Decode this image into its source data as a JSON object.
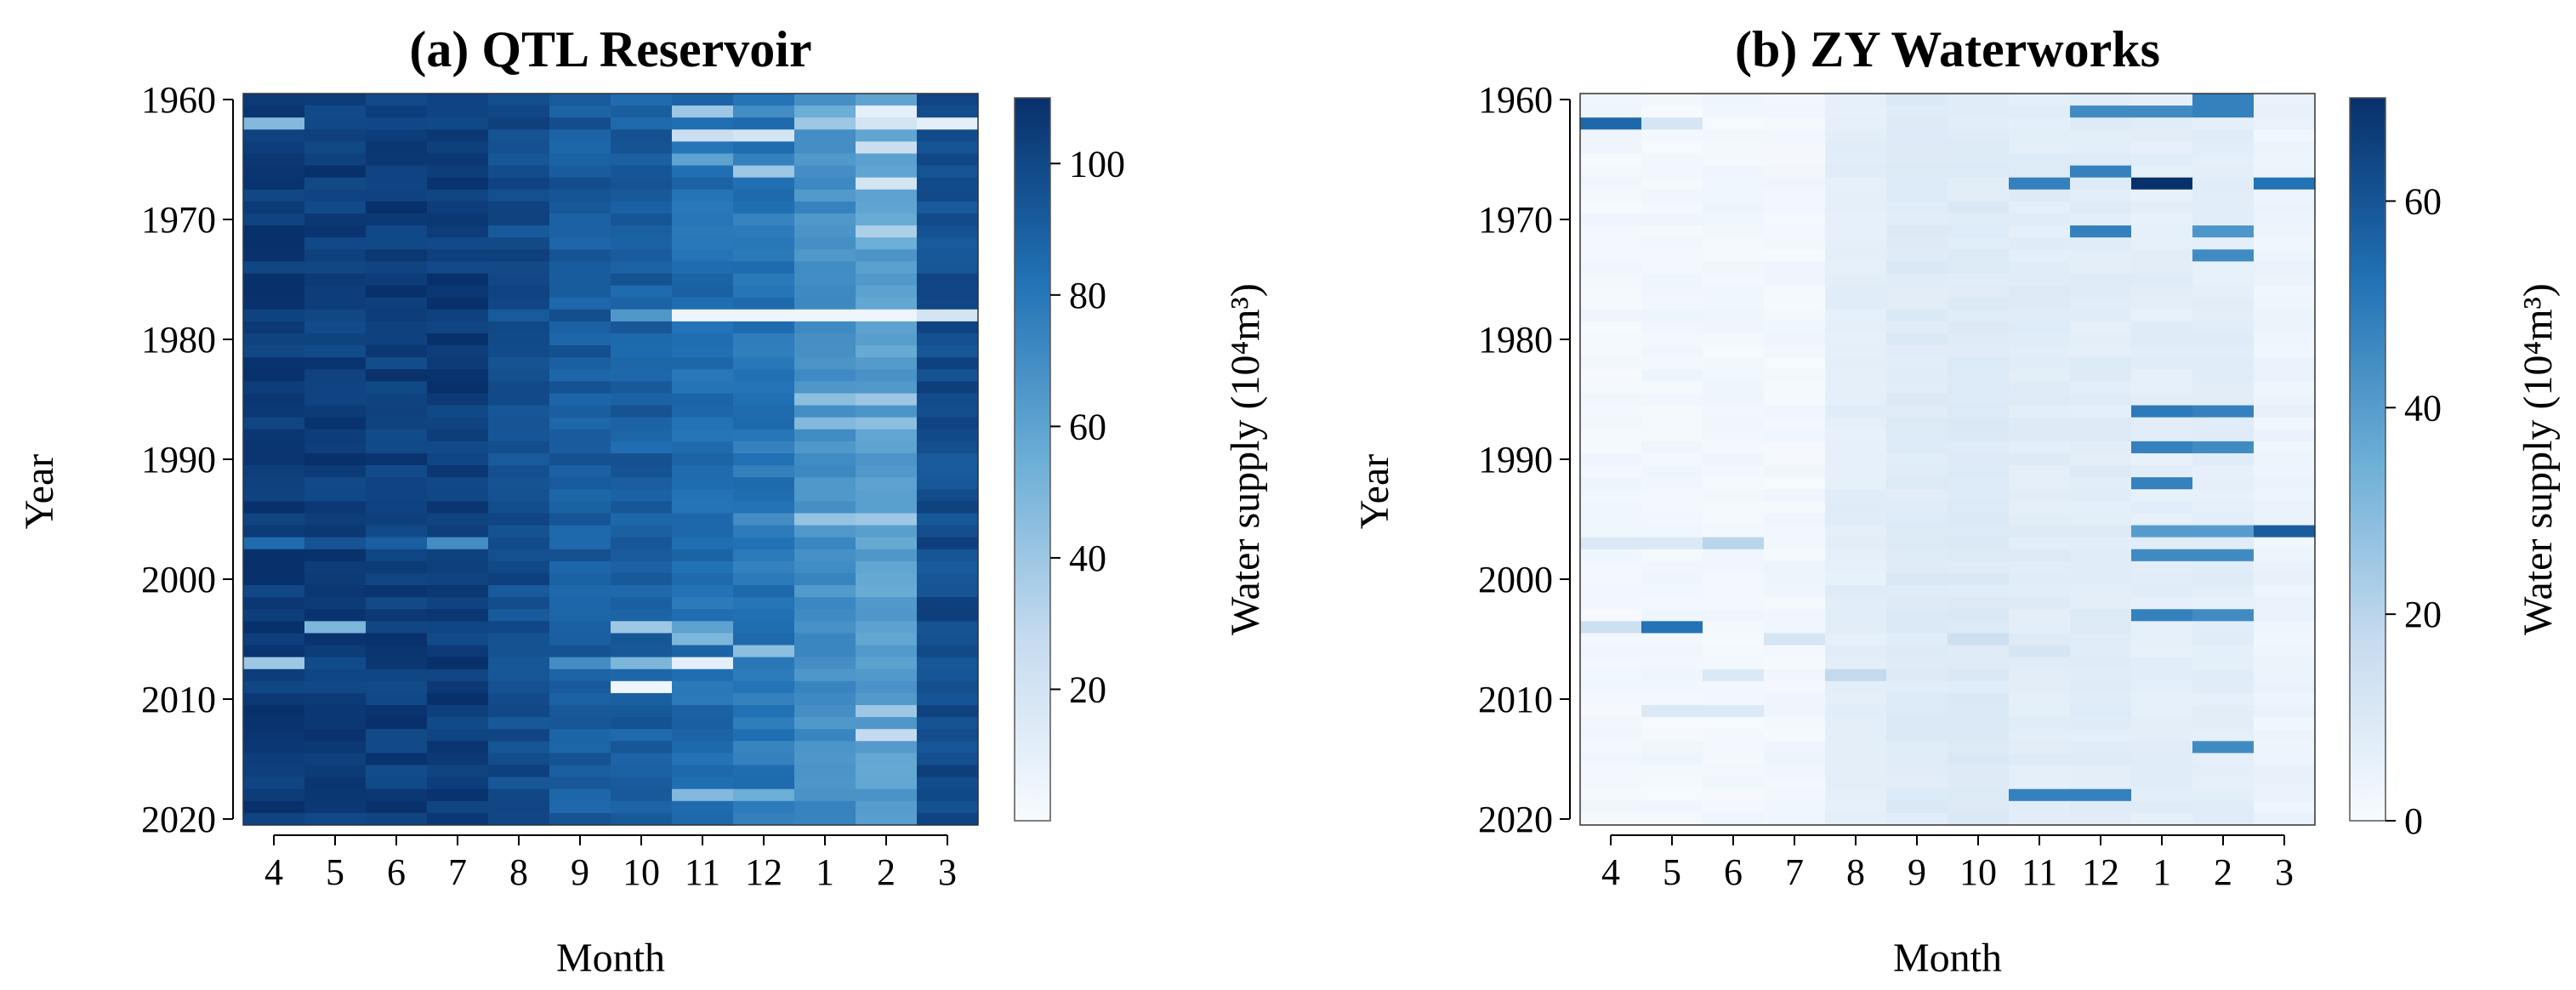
{
  "chart_data": [
    {
      "type": "heatmap",
      "title": "(a) QTL Reservoir",
      "xlabel": "Month",
      "ylabel": "Year",
      "x": [
        "4",
        "5",
        "6",
        "7",
        "8",
        "9",
        "10",
        "11",
        "12",
        "1",
        "2",
        "3"
      ],
      "y_ticks": [
        "1960",
        "1970",
        "1980",
        "1990",
        "2000",
        "2010",
        "2020"
      ],
      "ylim": [
        1960,
        2020
      ],
      "colorbar": {
        "label": "Water supply (10⁴m³)",
        "ticks": [
          "20",
          "40",
          "60",
          "80",
          "100"
        ],
        "range": [
          0,
          110
        ]
      },
      "col_base": [
        106,
        104,
        104,
        105,
        98,
        92,
        90,
        84,
        80,
        70,
        62,
        98
      ],
      "anomalies": [
        [
          1962,
          0,
          48
        ],
        [
          1962,
          1,
          100
        ],
        [
          1961,
          7,
          40
        ],
        [
          1963,
          7,
          25
        ],
        [
          1961,
          8,
          70
        ],
        [
          1963,
          8,
          20
        ],
        [
          1961,
          9,
          55
        ],
        [
          1962,
          9,
          40
        ],
        [
          1961,
          10,
          10
        ],
        [
          1962,
          10,
          20
        ],
        [
          1964,
          10,
          25
        ],
        [
          1962,
          11,
          10
        ],
        [
          1965,
          7,
          60
        ],
        [
          1966,
          8,
          40
        ],
        [
          1967,
          10,
          20
        ],
        [
          1971,
          10,
          35
        ],
        [
          1972,
          10,
          55
        ],
        [
          1978,
          6,
          65
        ],
        [
          1978,
          7,
          5
        ],
        [
          1978,
          8,
          5
        ],
        [
          1978,
          9,
          5
        ],
        [
          1978,
          10,
          5
        ],
        [
          1978,
          11,
          20
        ],
        [
          1985,
          9,
          45
        ],
        [
          1985,
          10,
          40
        ],
        [
          1987,
          9,
          48
        ],
        [
          1987,
          10,
          45
        ],
        [
          1993,
          9,
          65
        ],
        [
          1995,
          8,
          70
        ],
        [
          1995,
          9,
          42
        ],
        [
          1995,
          10,
          40
        ],
        [
          1997,
          0,
          85
        ],
        [
          1997,
          1,
          95
        ],
        [
          1997,
          2,
          90
        ],
        [
          1997,
          3,
          70
        ],
        [
          2004,
          1,
          50
        ],
        [
          2004,
          6,
          40
        ],
        [
          2004,
          7,
          60
        ],
        [
          2005,
          7,
          50
        ],
        [
          2006,
          8,
          45
        ],
        [
          2007,
          0,
          40
        ],
        [
          2007,
          5,
          70
        ],
        [
          2007,
          6,
          50
        ],
        [
          2007,
          7,
          10
        ],
        [
          2009,
          6,
          5
        ],
        [
          2011,
          10,
          40
        ],
        [
          2013,
          10,
          28
        ],
        [
          2018,
          7,
          48
        ],
        [
          2018,
          8,
          55
        ]
      ]
    },
    {
      "type": "heatmap",
      "title": "(b) ZY Waterworks",
      "xlabel": "Month",
      "ylabel": "Year",
      "x": [
        "4",
        "5",
        "6",
        "7",
        "8",
        "9",
        "10",
        "11",
        "12",
        "1",
        "2",
        "3"
      ],
      "y_ticks": [
        "1960",
        "1970",
        "1980",
        "1990",
        "2000",
        "2010",
        "2020"
      ],
      "ylim": [
        1960,
        2020
      ],
      "colorbar": {
        "label": "Water supply (10⁴m³)",
        "ticks": [
          "0",
          "20",
          "40",
          "60"
        ],
        "range": [
          0,
          70
        ]
      },
      "col_base": [
        2,
        2,
        2,
        2,
        7,
        9,
        9,
        8,
        8,
        7,
        7,
        4
      ],
      "anomalies": [
        [
          1962,
          0,
          55
        ],
        [
          1962,
          1,
          12
        ],
        [
          1961,
          8,
          45
        ],
        [
          1961,
          9,
          45
        ],
        [
          1960,
          10,
          48
        ],
        [
          1961,
          10,
          48
        ],
        [
          1966,
          8,
          48
        ],
        [
          1967,
          7,
          48
        ],
        [
          1967,
          9,
          70
        ],
        [
          1967,
          11,
          52
        ],
        [
          1971,
          8,
          48
        ],
        [
          1971,
          10,
          42
        ],
        [
          1973,
          10,
          45
        ],
        [
          1986,
          9,
          50
        ],
        [
          1986,
          10,
          48
        ],
        [
          1989,
          9,
          48
        ],
        [
          1989,
          10,
          45
        ],
        [
          1992,
          9,
          48
        ],
        [
          1996,
          9,
          40
        ],
        [
          1996,
          10,
          40
        ],
        [
          1996,
          11,
          58
        ],
        [
          1998,
          9,
          45
        ],
        [
          1998,
          10,
          45
        ],
        [
          2003,
          9,
          48
        ],
        [
          2003,
          10,
          45
        ],
        [
          2004,
          1,
          52
        ],
        [
          2014,
          10,
          45
        ],
        [
          2018,
          7,
          48
        ],
        [
          2018,
          8,
          48
        ],
        [
          1997,
          2,
          20
        ],
        [
          1997,
          0,
          10
        ],
        [
          1997,
          1,
          10
        ],
        [
          2005,
          3,
          12
        ],
        [
          2008,
          4,
          18
        ],
        [
          2005,
          6,
          15
        ],
        [
          2004,
          0,
          15
        ],
        [
          2011,
          1,
          10
        ],
        [
          2011,
          2,
          10
        ],
        [
          2008,
          2,
          10
        ],
        [
          2006,
          7,
          12
        ]
      ]
    }
  ]
}
